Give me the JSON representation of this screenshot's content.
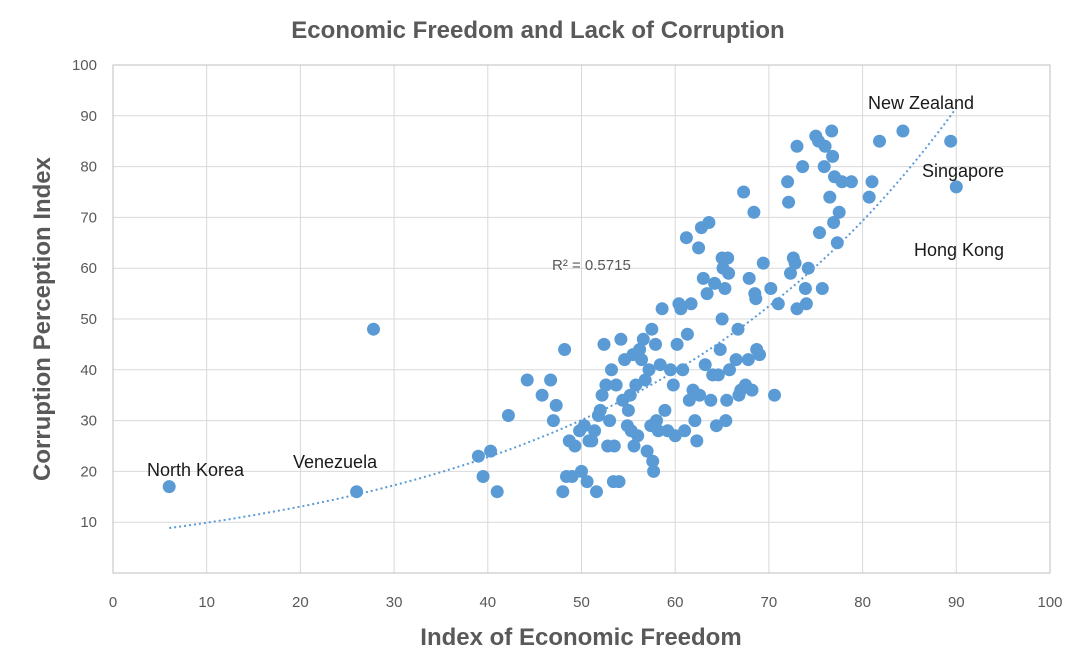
{
  "chart_data": {
    "type": "scatter",
    "title": "Economic Freedom and Lack of Corruption",
    "xlabel": "Index of Economic Freedom",
    "ylabel": "Corruption Perception Index",
    "xlim": [
      0,
      100
    ],
    "ylim": [
      0,
      100
    ],
    "x_ticks": [
      "0",
      "10",
      "20",
      "30",
      "40",
      "50",
      "60",
      "70",
      "80",
      "90",
      "100"
    ],
    "y_ticks": [
      "10",
      "20",
      "30",
      "40",
      "50",
      "60",
      "70",
      "80",
      "90",
      "100"
    ],
    "grid": true,
    "point_color": "#5b9bd5",
    "trendline": {
      "type": "exponential",
      "label": "R² = 0.5715",
      "a": 7.5,
      "b": 0.0278,
      "x_range": [
        6,
        90
      ]
    },
    "points": [
      [
        6,
        17
      ],
      [
        26,
        16
      ],
      [
        27.8,
        48
      ],
      [
        39,
        23
      ],
      [
        39.5,
        19
      ],
      [
        40.3,
        24
      ],
      [
        41,
        16
      ],
      [
        42.2,
        31
      ],
      [
        44.2,
        38
      ],
      [
        45.8,
        35
      ],
      [
        46.7,
        38
      ],
      [
        47,
        30
      ],
      [
        47.3,
        33
      ],
      [
        48,
        16
      ],
      [
        48.2,
        44
      ],
      [
        48.4,
        19
      ],
      [
        48.7,
        26
      ],
      [
        49,
        19
      ],
      [
        49.3,
        25
      ],
      [
        49.8,
        28
      ],
      [
        50,
        20
      ],
      [
        50.3,
        29
      ],
      [
        50.6,
        18
      ],
      [
        50.8,
        26
      ],
      [
        51.1,
        26
      ],
      [
        51.4,
        28
      ],
      [
        51.6,
        16
      ],
      [
        51.8,
        31
      ],
      [
        52,
        32
      ],
      [
        52.2,
        35
      ],
      [
        52.4,
        45
      ],
      [
        52.6,
        37
      ],
      [
        52.8,
        25
      ],
      [
        53,
        30
      ],
      [
        53.2,
        40
      ],
      [
        53.4,
        18
      ],
      [
        53.5,
        25
      ],
      [
        53.7,
        37
      ],
      [
        54,
        18
      ],
      [
        54.2,
        46
      ],
      [
        54.4,
        34
      ],
      [
        54.6,
        42
      ],
      [
        54.9,
        29
      ],
      [
        55,
        32
      ],
      [
        55.2,
        35
      ],
      [
        55.3,
        28
      ],
      [
        55.5,
        43
      ],
      [
        55.6,
        25
      ],
      [
        55.8,
        37
      ],
      [
        56,
        27
      ],
      [
        56.2,
        44
      ],
      [
        56.4,
        42
      ],
      [
        56.6,
        46
      ],
      [
        56.8,
        38
      ],
      [
        57,
        24
      ],
      [
        57.2,
        40
      ],
      [
        57.4,
        29
      ],
      [
        57.5,
        48
      ],
      [
        57.6,
        22
      ],
      [
        57.7,
        20
      ],
      [
        57.9,
        45
      ],
      [
        58,
        30
      ],
      [
        58.2,
        28
      ],
      [
        58.4,
        41
      ],
      [
        58.6,
        52
      ],
      [
        58.9,
        32
      ],
      [
        59.2,
        28
      ],
      [
        59.5,
        40
      ],
      [
        59.8,
        37
      ],
      [
        60,
        27
      ],
      [
        60.2,
        45
      ],
      [
        60.4,
        53
      ],
      [
        60.6,
        52
      ],
      [
        60.8,
        40
      ],
      [
        61,
        28
      ],
      [
        61.2,
        66
      ],
      [
        61.3,
        47
      ],
      [
        61.5,
        34
      ],
      [
        61.7,
        53
      ],
      [
        61.9,
        36
      ],
      [
        62.1,
        30
      ],
      [
        62.3,
        26
      ],
      [
        62.5,
        64
      ],
      [
        62.6,
        35
      ],
      [
        62.8,
        68
      ],
      [
        63,
        58
      ],
      [
        63.2,
        41
      ],
      [
        63.4,
        55
      ],
      [
        63.6,
        69
      ],
      [
        63.8,
        34
      ],
      [
        64,
        39
      ],
      [
        64.2,
        57
      ],
      [
        64.4,
        29
      ],
      [
        64.6,
        39
      ],
      [
        64.8,
        44
      ],
      [
        65,
        50
      ],
      [
        65,
        62
      ],
      [
        65.1,
        60
      ],
      [
        65.3,
        56
      ],
      [
        65.4,
        30
      ],
      [
        65.5,
        34
      ],
      [
        65.6,
        62
      ],
      [
        65.7,
        59
      ],
      [
        65.8,
        40
      ],
      [
        66.5,
        42
      ],
      [
        66.7,
        48
      ],
      [
        66.8,
        35
      ],
      [
        67,
        36
      ],
      [
        67.3,
        75
      ],
      [
        67.5,
        37
      ],
      [
        67.8,
        42
      ],
      [
        67.9,
        58
      ],
      [
        68.2,
        36
      ],
      [
        68.4,
        71
      ],
      [
        68.5,
        55
      ],
      [
        68.6,
        54
      ],
      [
        68.7,
        44
      ],
      [
        69,
        43
      ],
      [
        69.4,
        61
      ],
      [
        70.2,
        56
      ],
      [
        70.6,
        35
      ],
      [
        71,
        53
      ],
      [
        72,
        77
      ],
      [
        72.1,
        73
      ],
      [
        72.3,
        59
      ],
      [
        72.6,
        62
      ],
      [
        72.8,
        61
      ],
      [
        73,
        84
      ],
      [
        73,
        52
      ],
      [
        73.6,
        80
      ],
      [
        73.9,
        56
      ],
      [
        74,
        53
      ],
      [
        74.2,
        60
      ],
      [
        75,
        86
      ],
      [
        75.3,
        85
      ],
      [
        75.4,
        67
      ],
      [
        75.7,
        56
      ],
      [
        75.9,
        80
      ],
      [
        76,
        84
      ],
      [
        76.5,
        74
      ],
      [
        76.7,
        87
      ],
      [
        76.8,
        82
      ],
      [
        76.9,
        69
      ],
      [
        77,
        78
      ],
      [
        77.3,
        65
      ],
      [
        77.5,
        71
      ],
      [
        77.8,
        77
      ],
      [
        78.8,
        77
      ],
      [
        80.7,
        74
      ],
      [
        81,
        77
      ],
      [
        81.8,
        85
      ],
      [
        84.3,
        87
      ],
      [
        89.4,
        85
      ],
      [
        90,
        76
      ]
    ],
    "annotations": [
      {
        "text": "North Korea"
      },
      {
        "text": "Venezuela"
      },
      {
        "text": "New Zealand"
      },
      {
        "text": "Singapore"
      },
      {
        "text": "Hong Kong"
      }
    ]
  }
}
